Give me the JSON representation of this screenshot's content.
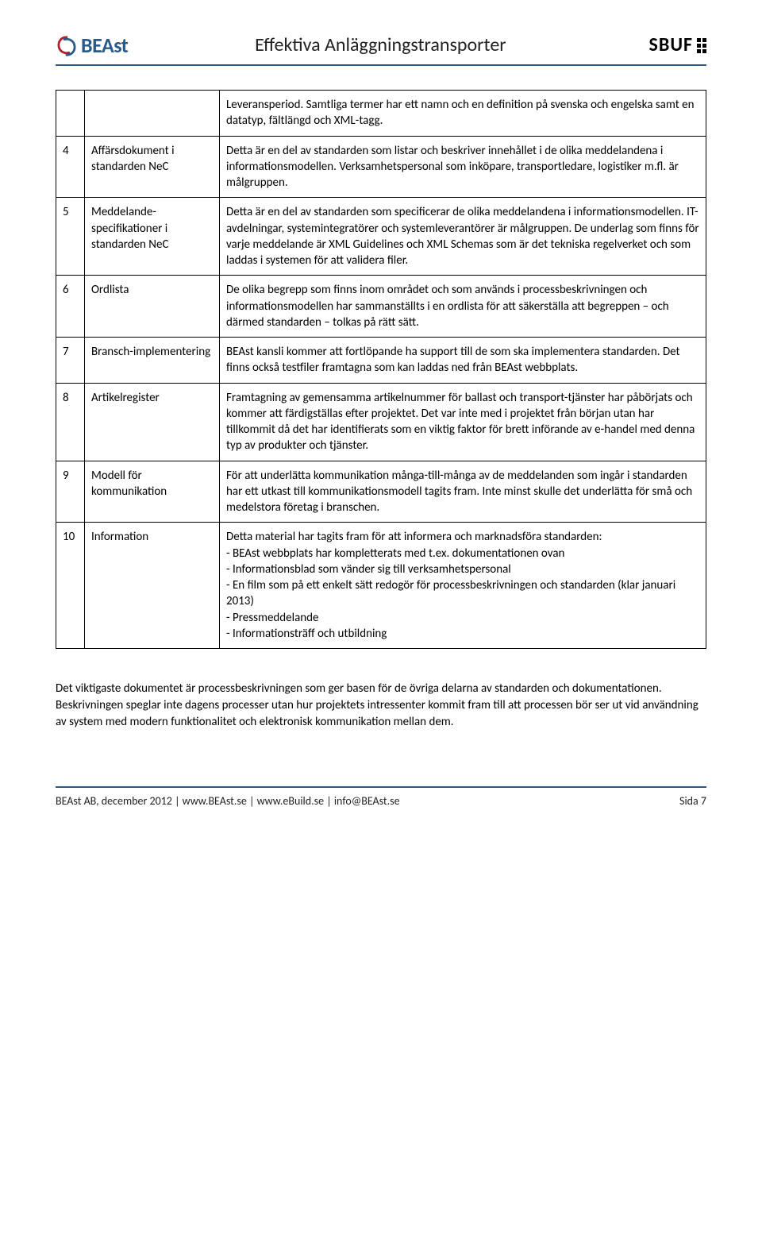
{
  "header": {
    "logo_left_text": "BEAst",
    "title": "Effektiva Anläggningstransporter",
    "logo_right_text": "SBUF"
  },
  "rows": [
    {
      "num": "",
      "label": "",
      "desc": "Leveransperiod. Samtliga termer har ett namn och en definition på svenska och engelska samt en datatyp, fältlängd och XML-tagg."
    },
    {
      "num": "4",
      "label": "Affärsdokument i standarden NeC",
      "desc": "Detta är en del av standarden som listar och beskriver innehållet i de olika meddelandena i informationsmodellen. Verksamhetspersonal som inköpare, transportledare, logistiker m.fl. är målgruppen."
    },
    {
      "num": "5",
      "label": "Meddelande-specifikationer i standarden NeC",
      "desc": "Detta är en del av standarden som specificerar de olika meddelandena i informationsmodellen. IT-avdelningar, systemintegratörer och systemleverantörer är målgruppen. De underlag som finns för varje meddelande är XML Guidelines och XML Schemas som är det tekniska regelverket och som laddas i systemen för att validera filer."
    },
    {
      "num": "6",
      "label": "Ordlista",
      "desc": "De olika begrepp som finns inom området och som används i processbeskrivningen och informationsmodellen har sammanställts i en ordlista för att säkerställa att begreppen – och därmed standarden – tolkas på rätt sätt."
    },
    {
      "num": "7",
      "label": "Bransch-implementering",
      "desc": "BEAst kansli kommer att fortlöpande ha support till de som ska implementera standarden. Det finns också testfiler framtagna som kan laddas ned från BEAst webbplats."
    },
    {
      "num": "8",
      "label": "Artikelregister",
      "desc": "Framtagning av gemensamma artikelnummer för ballast och transport-tjänster har påbörjats och kommer att färdigställas efter projektet. Det var inte med i projektet från början utan har tillkommit då det har identifierats som en viktig faktor för brett införande av e-handel med denna typ av produkter och tjänster."
    },
    {
      "num": "9",
      "label": "Modell för kommunikation",
      "desc": "För att underlätta kommunikation många-till-många av de meddelanden som ingår i standarden har ett utkast till kommunikationsmodell tagits fram. Inte minst skulle det underlätta för små och medelstora företag i branschen."
    },
    {
      "num": "10",
      "label": "Information",
      "desc": "Detta material har tagits fram för att informera och marknadsföra standarden:\n- BEAst webbplats har kompletterats med t.ex. dokumentationen ovan\n- Informationsblad som vänder sig till verksamhetspersonal\n- En film som på ett enkelt sätt redogör för processbeskrivningen och standarden (klar januari 2013)\n- Pressmeddelande\n- Informationsträff och utbildning"
    }
  ],
  "body_paragraph": "Det viktigaste dokumentet är processbeskrivningen som ger basen för de övriga delarna av standarden och dokumentationen. Beskrivningen speglar inte dagens processer utan hur projektets intressenter kommit fram till att processen bör ser ut vid användning av system med modern funktionalitet och elektronisk kommunikation mellan dem.",
  "footer": {
    "left": "BEAst AB, december 2012 | www.BEAst.se | www.eBuild.se | info@BEAst.se",
    "right": "Sida 7"
  },
  "colors": {
    "header_rule": "#2a5a8a",
    "logo_blue": "#2a5a8a",
    "swirl_red": "#b22030",
    "text": "#000000"
  }
}
